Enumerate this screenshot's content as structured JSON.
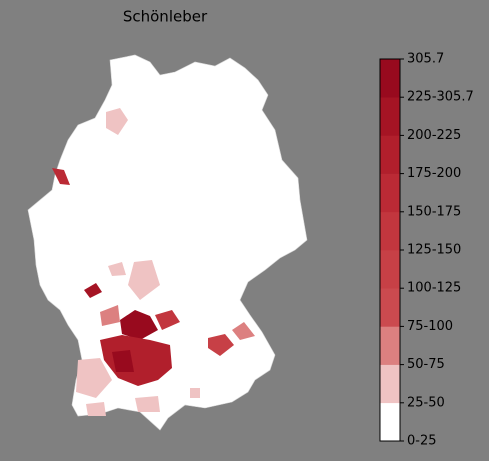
{
  "title": "Schönleber",
  "colorbar": {
    "labels": [
      "0-25",
      "25-50",
      "50-75",
      "75-100",
      "100-125",
      "125-150",
      "150-175",
      "175-200",
      "200-225",
      "225-305.7",
      "305.7"
    ],
    "colors": [
      "#ffffff",
      "#efc3c3",
      "#dc8080",
      "#cb4a4f",
      "#c74046",
      "#c2363e",
      "#bb2a35",
      "#b11f2c",
      "#a51424",
      "#980a1e"
    ]
  }
}
